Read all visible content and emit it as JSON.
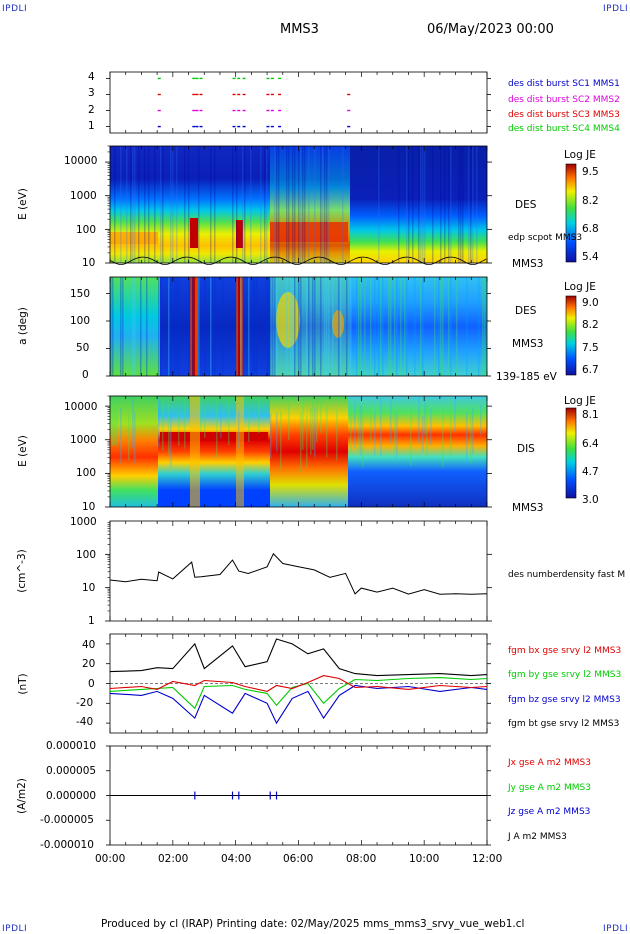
{
  "header": {
    "corner_tl": "IPDLI",
    "corner_tr": "IPDLI",
    "corner_bl": "IPDLI",
    "corner_br": "IPDLI",
    "spacecraft": "MMS3",
    "date": "06/May/2023 00:00"
  },
  "footer": {
    "text": "Produced by cl (IRAP)   Printing date: 02/May/2025   mms_mms3_srvy_vue_web1.cl"
  },
  "colors": {
    "blue": "#0000cc",
    "magenta": "#dd00dd",
    "red": "#dd0000",
    "green": "#00cc00",
    "black": "#000000"
  },
  "chart_data": [
    {
      "type": "scatter",
      "ylim": [
        0.6,
        4.4
      ],
      "yticks": [
        "1",
        "2",
        "3",
        "4"
      ],
      "legend": [
        {
          "label": "des dist burst SC1 MMS1",
          "color": "#0000cc",
          "level": 1
        },
        {
          "label": "des dist burst SC2 MMS2",
          "color": "#dd00dd",
          "level": 2
        },
        {
          "label": "des dist burst SC3 MMS3",
          "color": "#dd0000",
          "level": 3
        },
        {
          "label": "des dist burst SC4 MMS4",
          "color": "#00cc00",
          "level": 4
        }
      ],
      "burst_hours": [
        1.52,
        2.62,
        2.72,
        2.85,
        3.9,
        4.05,
        4.22,
        4.98,
        5.12,
        5.35,
        7.55
      ]
    },
    {
      "type": "heatmap",
      "ylabel": "E (eV)",
      "yscale": "log",
      "ylim": [
        10,
        30000
      ],
      "yticks": [
        "10",
        "100",
        "1000",
        "10000"
      ],
      "side_labels": [
        "DES",
        "edp scpot MMS3",
        "MMS3"
      ],
      "colorbar": {
        "title": "Log JE",
        "ticks": [
          "9.5",
          "8.2",
          "6.8",
          "5.4"
        ]
      }
    },
    {
      "type": "heatmap",
      "ylabel": "a (deg)",
      "ylim": [
        0,
        180
      ],
      "yticks": [
        "0",
        "50",
        "100",
        "150"
      ],
      "side_labels": [
        "DES",
        "MMS3",
        "139-185 eV"
      ],
      "colorbar": {
        "title": "Log JE",
        "ticks": [
          "9.0",
          "8.2",
          "7.5",
          "6.7"
        ]
      }
    },
    {
      "type": "heatmap",
      "ylabel": "E (eV)",
      "yscale": "log",
      "ylim": [
        10,
        20000
      ],
      "yticks": [
        "10",
        "100",
        "1000",
        "10000"
      ],
      "side_labels": [
        "DIS",
        "MMS3"
      ],
      "colorbar": {
        "title": "Log JE",
        "ticks": [
          "8.1",
          "6.4",
          "4.7",
          "3.0"
        ]
      }
    },
    {
      "type": "line",
      "ylabel": "(cm^-3)",
      "yscale": "log",
      "ylim": [
        1,
        1000
      ],
      "yticks": [
        "1",
        "10",
        "100",
        "1000"
      ],
      "series": [
        {
          "name": "des numberdensity fast M",
          "color": "#000000",
          "x": [
            0,
            0.5,
            1.0,
            1.5,
            1.55,
            2.0,
            2.6,
            2.7,
            2.9,
            3.5,
            3.9,
            4.1,
            4.4,
            5.0,
            5.2,
            5.5,
            6.0,
            6.5,
            7.0,
            7.5,
            7.8,
            8.0,
            8.5,
            9.0,
            9.5,
            10.0,
            10.5,
            11.0,
            11.5,
            12.0
          ],
          "y": [
            17,
            15,
            18,
            16,
            30,
            18,
            60,
            20,
            22,
            24,
            70,
            30,
            28,
            40,
            110,
            50,
            45,
            32,
            22,
            25,
            7,
            9,
            8,
            9,
            7,
            8,
            7,
            6,
            7,
            6
          ]
        }
      ]
    },
    {
      "type": "line",
      "ylabel": "(nT)",
      "ylim": [
        -50,
        50
      ],
      "yticks": [
        "-40",
        "-20",
        "0",
        "20",
        "40"
      ],
      "series": [
        {
          "name": "fgm bx gse srvy l2 MMS3",
          "color": "#dd0000",
          "x": [
            0,
            1,
            1.5,
            2,
            2.7,
            3,
            3.9,
            4.3,
            5,
            5.3,
            5.8,
            6.3,
            6.8,
            7.3,
            7.8,
            8.5,
            9.5,
            10.5,
            11.5,
            12
          ],
          "y": [
            -5,
            -3,
            -6,
            2,
            -2,
            3,
            1,
            -3,
            -8,
            -2,
            -5,
            1,
            8,
            5,
            -4,
            -3,
            -6,
            -2,
            -4,
            -3
          ]
        },
        {
          "name": "fgm by gse srvy l2 MMS3",
          "color": "#00cc00",
          "x": [
            0,
            1,
            1.5,
            2,
            2.7,
            3,
            3.9,
            4.3,
            5,
            5.3,
            5.8,
            6.3,
            6.8,
            7.3,
            7.8,
            8.5,
            9.5,
            10.5,
            11.5,
            12
          ],
          "y": [
            -8,
            -6,
            -5,
            -4,
            -25,
            -3,
            -2,
            -6,
            -10,
            -22,
            -4,
            0,
            -20,
            -5,
            4,
            3,
            5,
            6,
            4,
            5
          ]
        },
        {
          "name": "fgm bz gse srvy l2 MMS3",
          "color": "#0000cc",
          "x": [
            0,
            1,
            1.5,
            2,
            2.7,
            3,
            3.9,
            4.3,
            5,
            5.3,
            5.8,
            6.3,
            6.8,
            7.3,
            7.8,
            8.5,
            9.5,
            10.5,
            11.5,
            12
          ],
          "y": [
            -10,
            -12,
            -8,
            -15,
            -35,
            -12,
            -30,
            -10,
            -20,
            -40,
            -15,
            -8,
            -35,
            -12,
            -2,
            -5,
            -3,
            -8,
            -4,
            -6
          ]
        },
        {
          "name": "fgm bt gse srvy l2 MMS3",
          "color": "#000000",
          "x": [
            0,
            1,
            1.5,
            2,
            2.7,
            3,
            3.9,
            4.3,
            5,
            5.3,
            5.8,
            6.3,
            6.8,
            7.3,
            7.8,
            8.5,
            9.5,
            10.5,
            11.5,
            12
          ],
          "y": [
            12,
            13,
            16,
            15,
            40,
            15,
            38,
            17,
            22,
            45,
            40,
            30,
            35,
            15,
            10,
            8,
            9,
            10,
            8,
            9
          ]
        }
      ]
    },
    {
      "type": "line",
      "ylabel": "(A/m2)",
      "ylim": [
        -1e-05,
        1e-05
      ],
      "yticks": [
        "-0.000010",
        "-0.000005",
        "0.000000",
        "0.000005",
        "0.000010"
      ],
      "xlim": [
        0,
        12
      ],
      "xticks": [
        "00:00",
        "02:00",
        "04:00",
        "06:00",
        "08:00",
        "10:00",
        "12:00"
      ],
      "series": [
        {
          "name": "Jx gse A m2 MMS3",
          "color": "#dd0000"
        },
        {
          "name": "Jy gse A m2 MMS3",
          "color": "#00cc00"
        },
        {
          "name": "Jz gse A m2 MMS3",
          "color": "#0000cc"
        },
        {
          "name": "J A m2 MMS3",
          "color": "#000000"
        }
      ],
      "spike_hours": [
        2.7,
        3.9,
        4.1,
        5.1,
        5.3
      ]
    }
  ]
}
